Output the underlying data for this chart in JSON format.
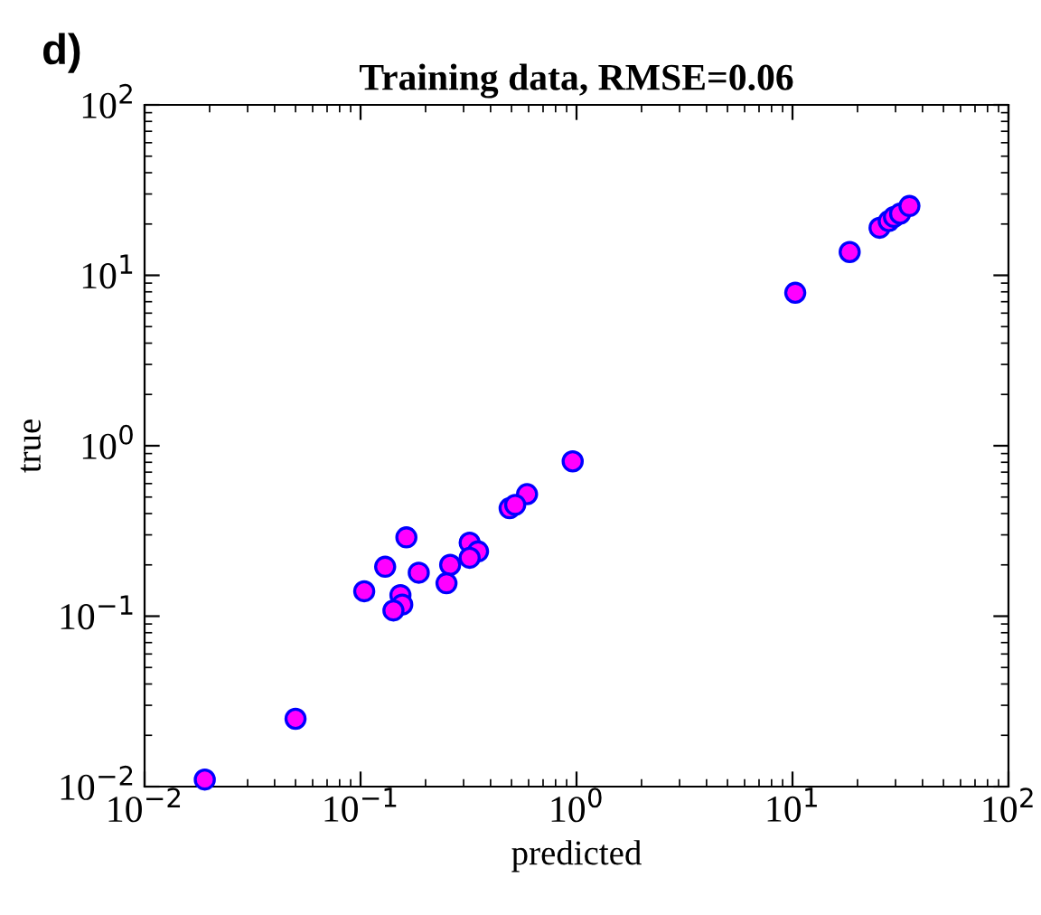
{
  "chart_data": {
    "type": "scatter",
    "title": "Training data, RMSE=0.06",
    "xlabel": "predicted",
    "ylabel": "true",
    "annotations": [
      "d)"
    ],
    "log": "xy",
    "marker": "circle",
    "grid": false,
    "xlim": [
      0.01,
      100
    ],
    "ylim": [
      0.01,
      100
    ],
    "xticks": [
      {
        "value": 0.01,
        "label": "10$^{−2}$"
      },
      {
        "value": 0.1,
        "label": "10$^{−1}$"
      },
      {
        "value": 1,
        "label": "10$^{0}$"
      },
      {
        "value": 10,
        "label": "10$^{1}$"
      },
      {
        "value": 100,
        "label": "10$^{2}$"
      }
    ],
    "yticks": [
      {
        "value": 0.01,
        "label": "10$^{−2}$"
      },
      {
        "value": 0.1,
        "label": "10$^{−1}$"
      },
      {
        "value": 1,
        "label": "10$^{0}$"
      },
      {
        "value": 10,
        "label": "10$^{1}$"
      },
      {
        "value": 100,
        "label": "10$^{2}$"
      }
    ],
    "series": [
      {
        "color": "#ff00ff",
        "x": [
          0.019,
          0.05,
          0.96,
          0.59,
          0.49,
          0.52,
          0.32,
          0.35,
          0.32,
          0.26,
          0.25,
          0.163,
          0.13,
          0.186,
          0.104,
          0.153,
          0.156,
          0.142,
          10.3,
          18.4,
          25.3,
          27.9,
          29.5,
          31.5,
          34.8
        ],
        "values": [
          0.011,
          0.025,
          0.81,
          0.52,
          0.43,
          0.45,
          0.27,
          0.24,
          0.22,
          0.2,
          0.156,
          0.29,
          0.195,
          0.18,
          0.14,
          0.133,
          0.117,
          0.108,
          7.9,
          13.7,
          19,
          20.8,
          22,
          23,
          25.5
        ]
      }
    ]
  }
}
